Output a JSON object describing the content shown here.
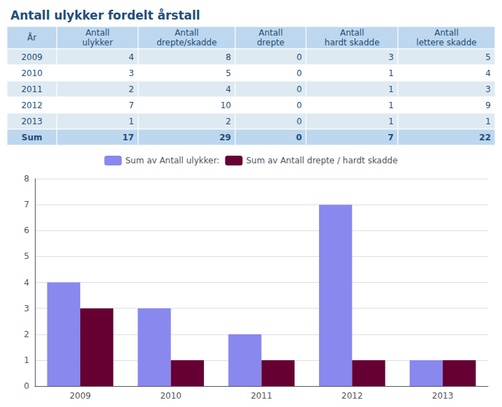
{
  "chart_data": {
    "type": "bar",
    "title": "Antall ulykker fordelt årstall",
    "categories": [
      "2009",
      "2010",
      "2011",
      "2012",
      "2013"
    ],
    "series": [
      {
        "name": "Sum av Antall ulykker:",
        "color": "#8888EE",
        "values": [
          4,
          3,
          2,
          7,
          1
        ]
      },
      {
        "name": "Sum av Antall drepte / hardt skadde",
        "color": "#660033",
        "values": [
          3,
          1,
          1,
          1,
          1
        ]
      }
    ],
    "ylim": [
      0,
      8
    ],
    "yticks": [
      0,
      1,
      2,
      3,
      4,
      5,
      6,
      7,
      8
    ],
    "grid": true,
    "legend": "top",
    "table": {
      "headers": [
        "År",
        "Antall\nulykker",
        "Antall\ndrepte/skadde",
        "Antall\ndrepte",
        "Antall\nhardt skadde",
        "Antall\nlettere skadde"
      ],
      "rows": [
        [
          "2009",
          "4",
          "8",
          "0",
          "3",
          "5"
        ],
        [
          "2010",
          "3",
          "5",
          "0",
          "1",
          "4"
        ],
        [
          "2011",
          "2",
          "4",
          "0",
          "1",
          "3"
        ],
        [
          "2012",
          "7",
          "10",
          "0",
          "1",
          "9"
        ],
        [
          "2013",
          "1",
          "2",
          "0",
          "1",
          "1"
        ]
      ],
      "total_row": [
        "Sum",
        "17",
        "29",
        "0",
        "7",
        "22"
      ]
    }
  }
}
